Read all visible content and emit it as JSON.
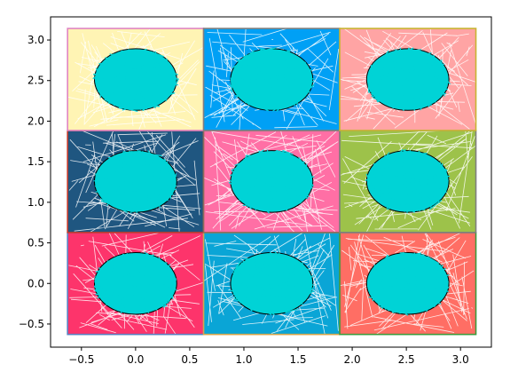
{
  "chart_data": {
    "type": "scatter",
    "title": "",
    "xlabel": "",
    "ylabel": "",
    "xlim": [
      -0.785,
      3.285
    ],
    "ylim": [
      -0.785,
      3.285
    ],
    "xticks": [
      -0.5,
      0.0,
      0.5,
      1.0,
      1.5,
      2.0,
      2.5,
      3.0
    ],
    "yticks": [
      -0.5,
      0.0,
      0.5,
      1.0,
      1.5,
      2.0,
      2.5,
      3.0
    ],
    "xtick_labels": [
      "−0.5",
      "0.0",
      "0.5",
      "1.0",
      "1.5",
      "2.0",
      "2.5",
      "3.0"
    ],
    "ytick_labels": [
      "−0.5",
      "0.0",
      "0.5",
      "1.0",
      "1.5",
      "2.0",
      "2.5",
      "3.0"
    ],
    "grid": false,
    "tiles": [
      {
        "row": 0,
        "col": 0,
        "x_range": [
          -0.628,
          0.628
        ],
        "y_range": [
          -0.628,
          0.628
        ],
        "center": [
          0.0,
          0.0
        ],
        "fill": "#fd346b",
        "border": "#5b7fc0",
        "scribble": "#ffffff"
      },
      {
        "row": 0,
        "col": 1,
        "x_range": [
          0.628,
          1.885
        ],
        "y_range": [
          -0.628,
          0.628
        ],
        "center": [
          1.257,
          0.0
        ],
        "fill": "#0aa5d6",
        "border": "#d4a64c",
        "scribble": "#ffffff"
      },
      {
        "row": 0,
        "col": 2,
        "x_range": [
          1.885,
          3.142
        ],
        "y_range": [
          -0.628,
          0.628
        ],
        "center": [
          2.513,
          0.0
        ],
        "fill": "#ff6e64",
        "border": "#3c9a3c",
        "scribble": "#ffffff"
      },
      {
        "row": 1,
        "col": 0,
        "x_range": [
          -0.628,
          0.628
        ],
        "y_range": [
          0.628,
          1.885
        ],
        "center": [
          0.0,
          1.257
        ],
        "fill": "#1f5680",
        "border": "#c0392b",
        "scribble": "#ffffff"
      },
      {
        "row": 1,
        "col": 1,
        "x_range": [
          0.628,
          1.885
        ],
        "y_range": [
          0.628,
          1.885
        ],
        "center": [
          1.257,
          1.257
        ],
        "fill": "#ff6fa5",
        "border": "#8c6d5a",
        "scribble": "#ffffff"
      },
      {
        "row": 1,
        "col": 2,
        "x_range": [
          1.885,
          3.142
        ],
        "y_range": [
          0.628,
          1.885
        ],
        "center": [
          2.513,
          1.257
        ],
        "fill": "#9dc24a",
        "border": "#7f7f7f",
        "scribble": "#ffffff"
      },
      {
        "row": 2,
        "col": 0,
        "x_range": [
          -0.628,
          0.628
        ],
        "y_range": [
          1.885,
          3.142
        ],
        "center": [
          0.0,
          2.513
        ],
        "fill": "#fff4b4",
        "border": "#e085c2",
        "scribble": "#ffffff"
      },
      {
        "row": 2,
        "col": 1,
        "x_range": [
          0.628,
          1.885
        ],
        "y_range": [
          1.885,
          3.142
        ],
        "center": [
          1.257,
          2.513
        ],
        "fill": "#00a0f5",
        "border": "#7f7f7f",
        "scribble": "#ffffff"
      },
      {
        "row": 2,
        "col": 2,
        "x_range": [
          1.885,
          3.142
        ],
        "y_range": [
          1.885,
          3.142
        ],
        "center": [
          2.513,
          2.513
        ],
        "fill": "#ffa4a4",
        "border": "#c8b432",
        "scribble": "#ffffff"
      }
    ],
    "circle_radius": 0.38,
    "circle_color": "#00d3d6",
    "circle_outline": "#000000"
  }
}
